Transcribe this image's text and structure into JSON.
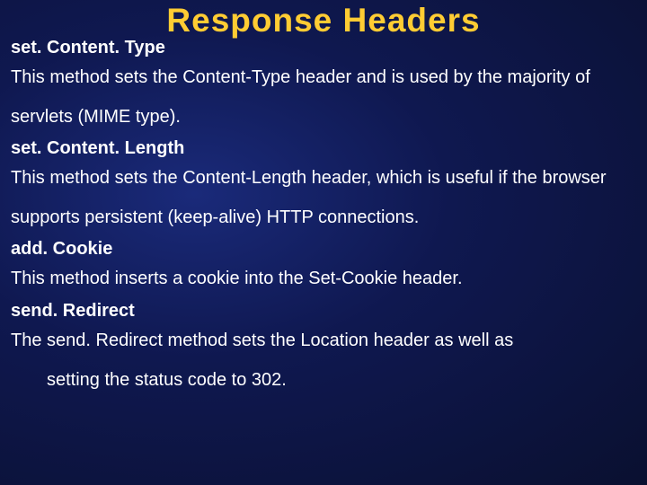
{
  "title": "Response Headers",
  "sections": [
    {
      "method": "set. Content. Type",
      "desc": "This method sets the Content-Type header and is used by the majority of servlets (MIME type)."
    },
    {
      "method": "set. Content. Length",
      "desc": "This method sets the Content-Length header, which is useful if the browser supports persistent (keep-alive) HTTP connections."
    },
    {
      "method": "add. Cookie",
      "desc": "This method inserts a cookie into the Set-Cookie header."
    },
    {
      "method": "send. Redirect",
      "desc_line1": "The send. Redirect method sets the Location header as well as",
      "desc_line2": "setting the status code to 302."
    }
  ],
  "colors": {
    "title_color": "#ffcc33",
    "text_color": "#ffffff",
    "background": "#0f1a55"
  },
  "typography": {
    "title_fontsize": 37,
    "body_fontsize": 20,
    "title_weight": 900,
    "method_weight": "bold"
  }
}
